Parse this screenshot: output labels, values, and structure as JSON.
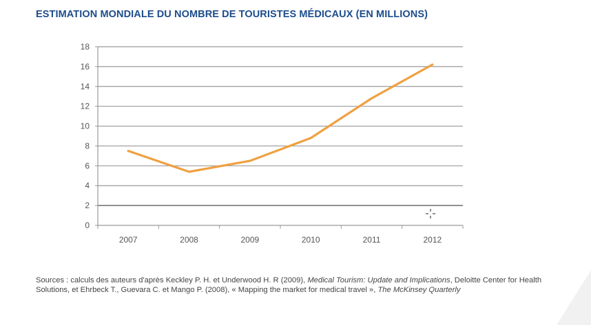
{
  "chart_data": {
    "type": "line",
    "title": "ESTIMATION MONDIALE DU NOMBRE DE TOURISTES MÉDICAUX (EN MILLIONS)",
    "xlabel": "",
    "ylabel": "",
    "categories": [
      "2007",
      "2008",
      "2009",
      "2010",
      "2011",
      "2012"
    ],
    "series": [
      {
        "values": [
          7.5,
          5.4,
          6.5,
          8.8,
          12.8,
          16.2
        ],
        "color": "#f0a040"
      }
    ],
    "ylim": [
      0,
      18
    ],
    "yticks": [
      0,
      2,
      4,
      6,
      8,
      10,
      12,
      14,
      16,
      18
    ],
    "grid": true,
    "legend": "none"
  },
  "sources": {
    "prefix": "Sources : calculs des auteurs d'après Keckley P. H. et Underwood H. R (2009), ",
    "italic1": "Medical Tourism: Update and Implications",
    "middle": ", Deloitte Center for Health Solutions, et Ehrbeck T., Guevara C. et Mango P. (2008), « Mapping the market for medical travel », ",
    "italic2": "The McKinsey Quarterly"
  }
}
